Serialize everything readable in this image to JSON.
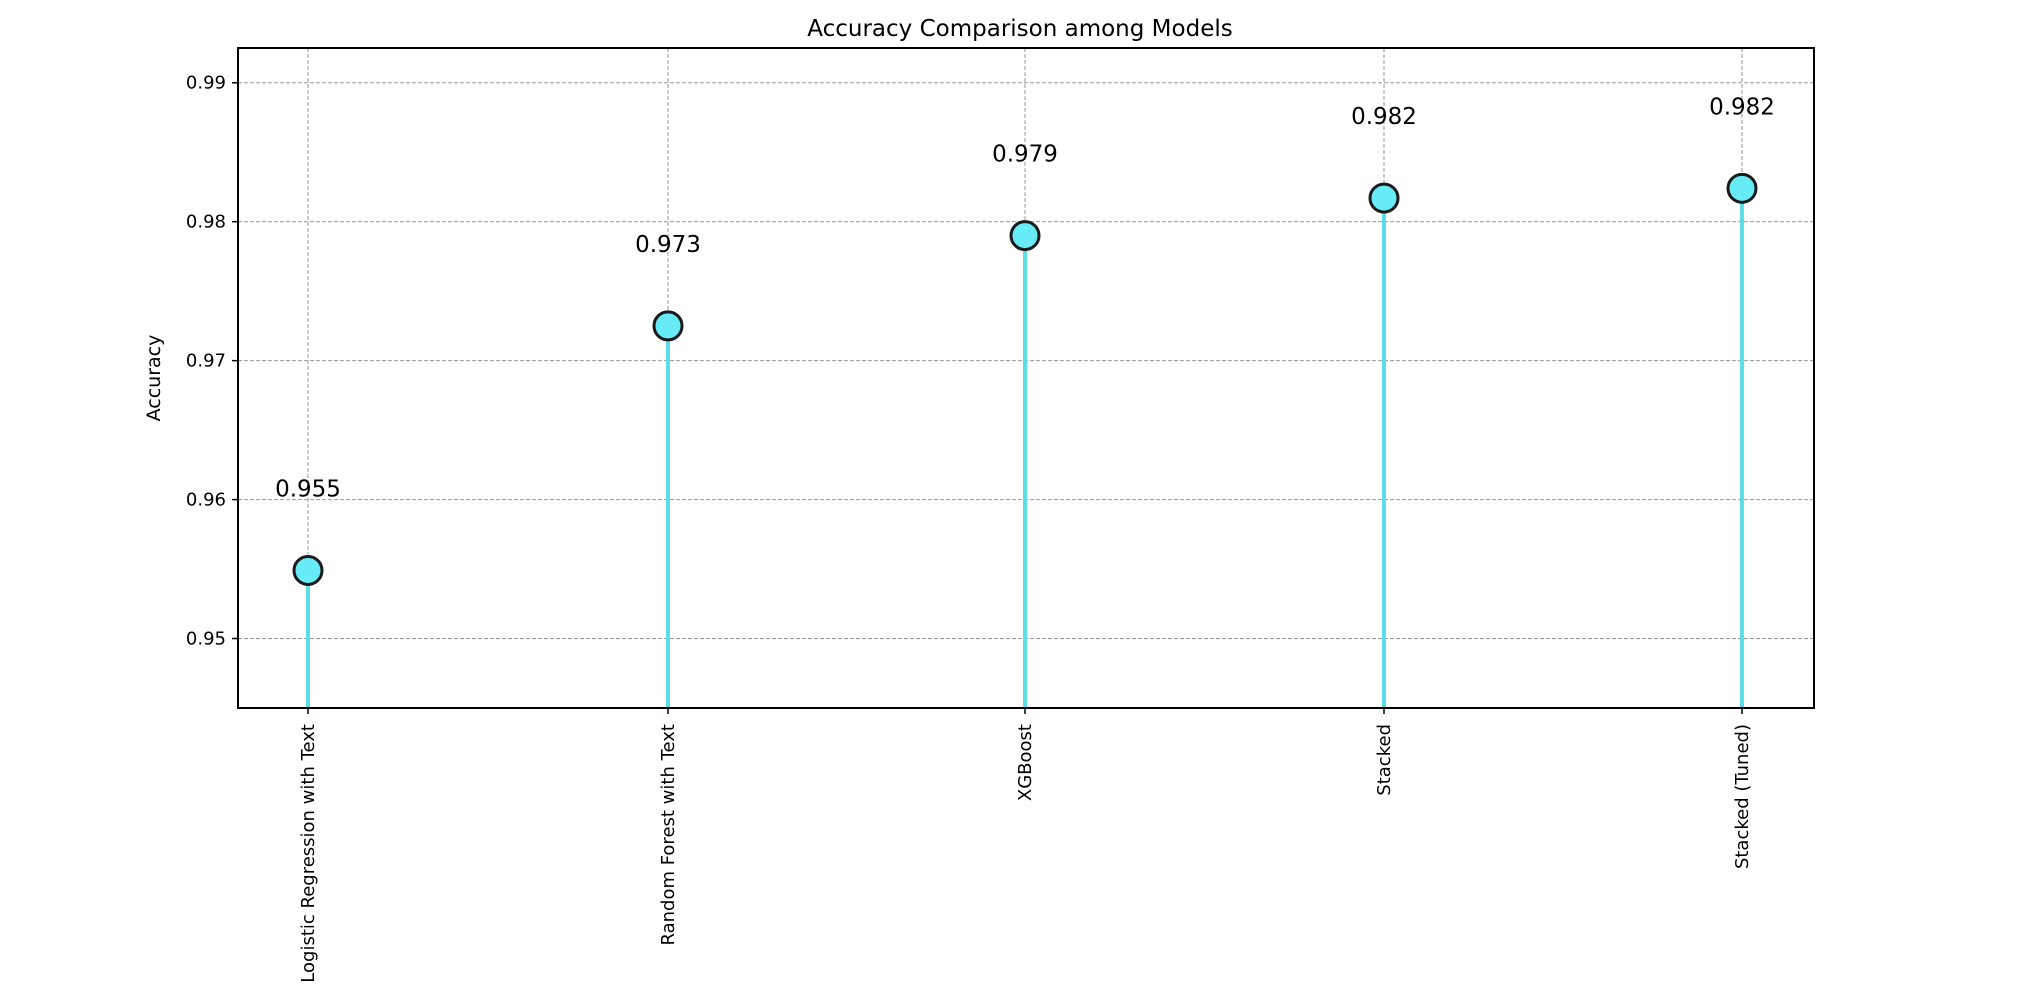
{
  "chart_data": {
    "type": "scatter",
    "title": "Accuracy Comparison among Models",
    "xlabel": "",
    "ylabel": "Accuracy",
    "categories": [
      "Logistic Regression with Text",
      "Random Forest with Text",
      "XGBoost",
      "Stacked",
      "Stacked (Tuned)"
    ],
    "values": [
      0.9549,
      0.9725,
      0.979,
      0.9817,
      0.9824
    ],
    "data_labels": [
      "0.955",
      "0.973",
      "0.979",
      "0.982",
      "0.982"
    ],
    "ylim": [
      0.945,
      0.9925
    ],
    "yticks": [
      0.95,
      0.96,
      0.97,
      0.98,
      0.99
    ],
    "ytick_labels": [
      "0.95",
      "0.96",
      "0.97",
      "0.98",
      "0.99"
    ],
    "grid": true,
    "legend": "none",
    "colors": {
      "stem": "#5ddde6",
      "marker_fill": "#66ebf7",
      "marker_edge": "#1a1a1a",
      "grid": "#999999",
      "frame": "#000000"
    }
  }
}
